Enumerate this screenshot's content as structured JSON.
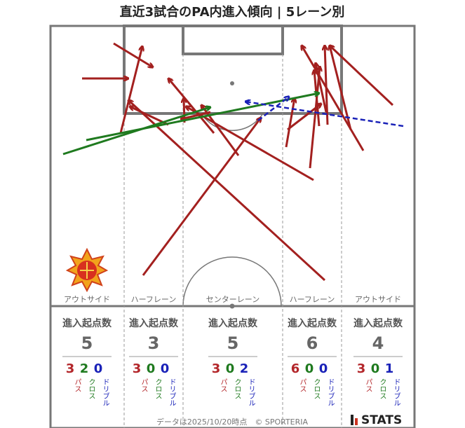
{
  "title": "直近3試合のPA内進入傾向 | 5レーン別",
  "lanes": [
    {
      "name": "アウトサイド",
      "heading": "進入起点数",
      "total": 5,
      "counts": [
        3,
        2,
        0
      ],
      "count_labels": [
        "パス",
        "クロス",
        "ドリブル"
      ]
    },
    {
      "name": "ハーフレーン",
      "heading": "進入起点数",
      "total": 3,
      "counts": [
        3,
        0,
        0
      ],
      "count_labels": [
        "パス",
        "クロス",
        "ドリブル"
      ]
    },
    {
      "name": "センターレーン",
      "heading": "進入起点数",
      "total": 5,
      "counts": [
        3,
        0,
        2
      ],
      "count_labels": [
        "パス",
        "クロス",
        "ドリブル"
      ]
    },
    {
      "name": "ハーフレーン",
      "heading": "進入起点数",
      "total": 6,
      "counts": [
        6,
        0,
        0
      ],
      "count_labels": [
        "パス",
        "クロス",
        "ドリブル"
      ]
    },
    {
      "name": "アウトサイド",
      "heading": "進入起点数",
      "total": 4,
      "counts": [
        3,
        0,
        1
      ],
      "count_labels": [
        "パス",
        "クロス",
        "ドリブル"
      ]
    }
  ],
  "footer": "データは2025/10/20時点　© SPORTERIA",
  "brand": "STATS"
}
